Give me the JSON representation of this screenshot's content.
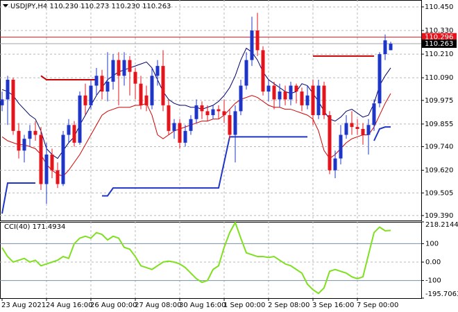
{
  "chart_data": {
    "type": "candlestick",
    "header": "USDJPY,H4  110.230 110.273 110.230 110.263",
    "up_color": "#1f35c8",
    "down_color": "#e3141c",
    "categories": [
      "23 Aug 2021",
      null,
      null,
      null,
      null,
      null,
      null,
      null,
      "24 Aug 16:00",
      null,
      null,
      null,
      null,
      null,
      null,
      null,
      "26 Aug 00:00",
      null,
      null,
      null,
      null,
      null,
      null,
      null,
      "27 Aug 08:00",
      null,
      null,
      null,
      null,
      null,
      null,
      null,
      "30 Aug 16:00",
      null,
      null,
      null,
      null,
      null,
      null,
      null,
      "1 Sep 00:00",
      null,
      null,
      null,
      null,
      null,
      null,
      null,
      "2 Sep 08:00",
      null,
      null,
      null,
      null,
      null,
      null,
      null,
      "3 Sep 16:00",
      null,
      null,
      null,
      null,
      null,
      null,
      null,
      "7 Sep 00:00",
      null,
      null,
      null,
      null,
      null,
      null
    ],
    "open": [
      109.95,
      109.98,
      110.08,
      109.82,
      109.72,
      109.78,
      109.82,
      109.8,
      109.55,
      109.7,
      109.62,
      109.55,
      109.8,
      109.85,
      109.76,
      110.0,
      109.95,
      110.05,
      110.1,
      110.02,
      110.07,
      110.18,
      110.1,
      110.18,
      110.12,
      110.06,
      110.0,
      109.95,
      110.1,
      110.15,
      109.95,
      109.82,
      109.86,
      109.76,
      109.82,
      109.88,
      109.95,
      109.92,
      109.9,
      109.93,
      109.92,
      109.9,
      109.8,
      109.92,
      110.05,
      110.18,
      110.33,
      110.23,
      110.02,
      110.05,
      109.98,
      110.02,
      109.98,
      110.05,
      110.02,
      109.95,
      110.05,
      109.9,
      110.05,
      109.9,
      109.62,
      109.68,
      109.8,
      109.86,
      109.84,
      109.83,
      109.8,
      109.85,
      109.96,
      110.21,
      110.23
    ],
    "high": [
      110.02,
      110.1,
      110.09,
      109.86,
      109.8,
      109.85,
      109.87,
      109.84,
      109.76,
      109.73,
      109.66,
      109.82,
      109.88,
      109.87,
      110.02,
      110.06,
      110.08,
      110.14,
      110.13,
      110.22,
      110.21,
      110.22,
      110.22,
      110.2,
      110.14,
      110.1,
      110.05,
      110.14,
      110.18,
      110.23,
      109.98,
      109.88,
      109.88,
      109.85,
      109.9,
      109.98,
      109.97,
      109.95,
      109.95,
      109.95,
      109.98,
      109.93,
      109.95,
      110.08,
      110.22,
      110.4,
      110.42,
      110.25,
      110.08,
      110.07,
      110.06,
      110.05,
      110.07,
      110.06,
      110.04,
      110.05,
      110.08,
      110.08,
      110.07,
      109.92,
      109.72,
      109.85,
      109.9,
      109.92,
      109.88,
      109.86,
      109.88,
      109.98,
      110.22,
      110.31,
      110.273
    ],
    "low": [
      109.92,
      109.85,
      109.8,
      109.68,
      109.66,
      109.74,
      109.77,
      109.52,
      109.45,
      109.58,
      109.53,
      109.54,
      109.76,
      109.74,
      109.75,
      109.9,
      109.93,
      110.0,
      109.98,
      109.97,
      110.03,
      109.95,
      110.05,
      110.0,
      109.98,
      109.93,
      109.92,
      109.93,
      110.05,
      109.92,
      109.8,
      109.78,
      109.73,
      109.74,
      109.8,
      109.86,
      109.88,
      109.87,
      109.88,
      109.88,
      109.86,
      109.78,
      109.66,
      109.9,
      110.03,
      110.15,
      110.2,
      110.0,
      109.97,
      109.93,
      109.94,
      109.95,
      109.95,
      109.96,
      109.92,
      109.93,
      109.85,
      109.88,
      109.88,
      109.6,
      109.58,
      109.65,
      109.78,
      109.8,
      109.8,
      109.75,
      109.7,
      109.82,
      109.94,
      110.18,
      110.23
    ],
    "close": [
      109.98,
      110.08,
      109.82,
      109.72,
      109.78,
      109.82,
      109.8,
      109.55,
      109.7,
      109.62,
      109.55,
      109.8,
      109.85,
      109.76,
      110.0,
      109.95,
      110.05,
      110.1,
      110.02,
      110.07,
      110.18,
      110.1,
      110.18,
      110.12,
      110.06,
      109.95,
      109.95,
      110.1,
      110.15,
      109.95,
      109.82,
      109.86,
      109.76,
      109.82,
      109.88,
      109.95,
      109.92,
      109.9,
      109.93,
      109.92,
      109.9,
      109.8,
      109.92,
      110.05,
      110.18,
      110.33,
      110.23,
      110.02,
      110.05,
      109.98,
      110.02,
      109.98,
      110.05,
      110.02,
      109.95,
      110.0,
      109.9,
      110.05,
      109.9,
      109.62,
      109.68,
      109.8,
      109.86,
      109.84,
      109.83,
      109.8,
      109.85,
      109.96,
      110.21,
      110.28,
      110.263
    ],
    "overlays": [
      {
        "color": "#00006e",
        "width": 1,
        "values": [
          110.03,
          110.02,
          110.0,
          109.96,
          109.93,
          109.9,
          109.88,
          109.82,
          109.73,
          109.7,
          109.68,
          109.72,
          109.76,
          109.79,
          109.85,
          109.9,
          109.95,
          110.0,
          110.04,
          110.08,
          110.1,
          110.12,
          110.13,
          110.14,
          110.15,
          110.16,
          110.17,
          110.14,
          110.08,
          110.02,
          109.98,
          109.96,
          109.95,
          109.95,
          109.94,
          109.94,
          109.93,
          109.94,
          109.95,
          109.97,
          110.0,
          110.04,
          110.1,
          110.18,
          110.24,
          110.22,
          110.18,
          110.12,
          110.08,
          110.06,
          110.04,
          110.02,
          110.01,
          110.02,
          110.06,
          110.05,
          110.01,
          109.97,
          109.92,
          109.88,
          109.87,
          109.89,
          109.92,
          109.93,
          109.91,
          109.89,
          109.9,
          109.96,
          110.05,
          110.1,
          110.14
        ]
      },
      {
        "color": "#d40000",
        "width": 1,
        "values": [
          109.79,
          109.77,
          109.76,
          109.75,
          109.75,
          109.74,
          109.73,
          109.7,
          109.65,
          109.62,
          109.6,
          109.59,
          109.62,
          109.66,
          109.7,
          109.75,
          109.8,
          109.85,
          109.9,
          109.92,
          109.93,
          109.94,
          109.94,
          109.94,
          109.95,
          109.95,
          109.96,
          109.9,
          109.8,
          109.78,
          109.8,
          109.82,
          109.83,
          109.84,
          109.85,
          109.86,
          109.87,
          109.87,
          109.88,
          109.88,
          109.9,
          109.93,
          109.96,
          109.98,
          109.99,
          110.0,
          109.99,
          109.97,
          109.95,
          109.94,
          109.94,
          109.93,
          109.93,
          109.92,
          109.91,
          109.9,
          109.88,
          109.82,
          109.72,
          109.68,
          109.7,
          109.73,
          109.76,
          109.78,
          109.79,
          109.8,
          109.8,
          109.84,
          109.9,
          109.96,
          110.01
        ]
      },
      {
        "color": "#1f35c8",
        "width": 2,
        "values": [
          109.4,
          109.555,
          109.555,
          109.555,
          109.555,
          109.555,
          109.555,
          null,
          null,
          null,
          null,
          null,
          null,
          null,
          null,
          null,
          null,
          null,
          109.49,
          109.49,
          109.53,
          109.53,
          109.53,
          109.53,
          109.53,
          109.53,
          109.53,
          109.53,
          109.53,
          109.53,
          109.53,
          109.53,
          109.53,
          109.53,
          109.53,
          109.53,
          109.53,
          109.53,
          109.53,
          109.53,
          109.66,
          109.79,
          109.79,
          109.79,
          109.79,
          109.79,
          109.79,
          109.79,
          109.79,
          109.79,
          109.79,
          109.79,
          109.79,
          109.79,
          109.79,
          109.79,
          null,
          null,
          null,
          null,
          null,
          null,
          null,
          null,
          null,
          null,
          null,
          109.77,
          109.83,
          109.84,
          109.84
        ]
      },
      {
        "color": "#cc0000",
        "width": 2,
        "values": [
          null,
          null,
          null,
          null,
          null,
          null,
          null,
          110.1,
          110.08,
          110.08,
          110.08,
          110.08,
          110.08,
          110.08,
          110.08,
          110.08,
          110.08,
          110.08,
          null,
          null,
          null,
          null,
          null,
          null,
          null,
          null,
          null,
          null,
          null,
          null,
          null,
          null,
          null,
          null,
          null,
          null,
          null,
          null,
          null,
          null,
          null,
          null,
          null,
          null,
          null,
          null,
          null,
          null,
          null,
          null,
          null,
          null,
          null,
          null,
          null,
          null,
          110.2,
          110.2,
          110.2,
          110.2,
          110.2,
          110.2,
          110.2,
          110.2,
          110.2,
          110.2,
          110.2,
          110.2,
          null,
          null,
          null
        ]
      }
    ],
    "price_lines": [
      {
        "value": 110.296,
        "color": "#e3141c"
      },
      {
        "value": 110.263,
        "color": "#a0a0a0"
      }
    ],
    "ylim": [
      109.365,
      110.485
    ],
    "yticks": [
      {
        "value": 110.45,
        "label": "110.450"
      },
      {
        "value": 110.33,
        "label": "110.330"
      },
      {
        "value": 110.21,
        "label": "110.210"
      },
      {
        "value": 110.09,
        "label": "110.090"
      },
      {
        "value": 109.975,
        "label": "109.975"
      },
      {
        "value": 109.855,
        "label": "109.855"
      },
      {
        "value": 109.74,
        "label": "109.740"
      },
      {
        "value": 109.62,
        "label": "109.620"
      },
      {
        "value": 109.505,
        "label": "109.505"
      },
      {
        "value": 109.39,
        "label": "109.390"
      }
    ],
    "grid": true,
    "indicator": {
      "title": "CCI(40) 171.4934",
      "color": "#7fe01f",
      "values": [
        78,
        30,
        0,
        10,
        20,
        0,
        10,
        -20,
        -10,
        0,
        10,
        30,
        20,
        100,
        130,
        140,
        130,
        160,
        150,
        120,
        140,
        130,
        80,
        70,
        30,
        -20,
        -30,
        -40,
        -20,
        0,
        5,
        0,
        -10,
        -30,
        -60,
        -90,
        -110,
        -100,
        -40,
        -20,
        80,
        160,
        215,
        130,
        50,
        40,
        30,
        30,
        25,
        30,
        10,
        -10,
        -20,
        -40,
        -60,
        -120,
        -150,
        -170,
        -140,
        -50,
        -40,
        -50,
        -60,
        -80,
        -90,
        -80,
        40,
        160,
        190,
        170,
        171.4934
      ],
      "ylim": [
        -195.7063,
        218.2144
      ],
      "yticks": [
        218.2144,
        100,
        {
          "value": 0,
          "label": "0.00"
        },
        -100,
        -195.7063
      ],
      "levels": [
        100,
        -100
      ]
    }
  }
}
